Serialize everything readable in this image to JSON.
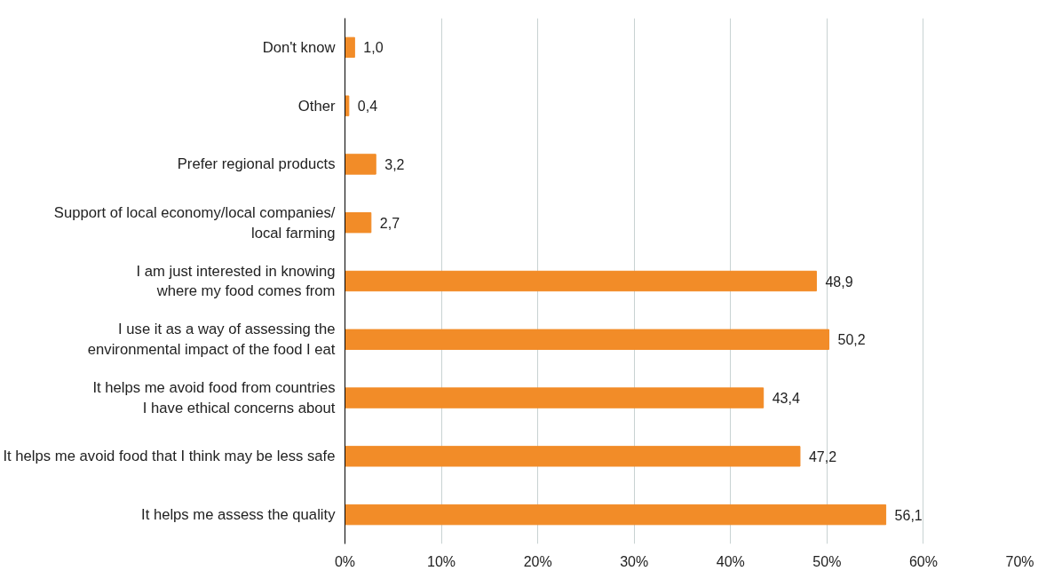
{
  "chart_data": {
    "type": "bar",
    "orientation": "horizontal",
    "categories": [
      "Don't know",
      "Other",
      "Prefer regional products",
      "Support of local economy/local companies/\nlocal farming",
      "I am just interested in knowing\nwhere my food comes from",
      "I use it as a way of assessing the\nenvironmental impact of the food I eat",
      "It helps me avoid food from countries\nI have ethical concerns about",
      "It helps me avoid food that I think may be less safe",
      "It helps me assess the quality"
    ],
    "values": [
      1.0,
      0.4,
      3.2,
      2.7,
      48.9,
      50.2,
      43.4,
      47.2,
      56.1
    ],
    "value_labels": [
      "1,0",
      "0,4",
      "3,2",
      "2,7",
      "48,9",
      "50,2",
      "43,4",
      "47,2",
      "56,1"
    ],
    "color": "#f28c28",
    "xlim": [
      0,
      70
    ],
    "xticks": [
      {
        "value": 0,
        "label": "0%"
      },
      {
        "value": 10,
        "label": "10%"
      },
      {
        "value": 20,
        "label": "20%"
      },
      {
        "value": 30,
        "label": "30%"
      },
      {
        "value": 40,
        "label": "40%"
      },
      {
        "value": 50,
        "label": "50%"
      },
      {
        "value": 60,
        "label": "60%"
      },
      {
        "value": 70,
        "label": "70%"
      }
    ],
    "grid": "x"
  }
}
